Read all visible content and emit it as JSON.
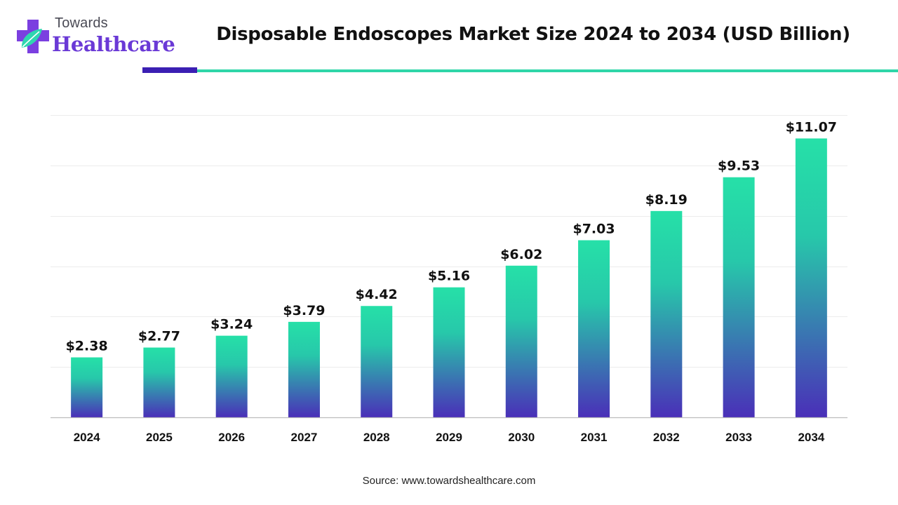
{
  "logo": {
    "line1": "Towards",
    "line2": "Healthcare"
  },
  "header": {
    "title": "Disposable Endoscopes Market Size 2024 to 2034 (USD Billion)"
  },
  "footer": {
    "source": "Source: www.towardshealthcare.com"
  },
  "colors": {
    "bar_top": "#26e0a8",
    "bar_bottom": "#4a2fb8",
    "accent_dark": "#3b1fb3",
    "accent_teal": "#2fd6a8",
    "brand_purple": "#6a39d6"
  },
  "chart_data": {
    "type": "bar",
    "title": "Disposable Endoscopes Market Size 2024 to 2034 (USD Billion)",
    "categories": [
      "2024",
      "2025",
      "2026",
      "2027",
      "2028",
      "2029",
      "2030",
      "2031",
      "2032",
      "2033",
      "2034"
    ],
    "values": [
      2.38,
      2.77,
      3.24,
      3.79,
      4.42,
      5.16,
      6.02,
      7.03,
      8.19,
      9.53,
      11.07
    ],
    "value_labels": [
      "$2.38",
      "$2.77",
      "$3.24",
      "$3.79",
      "$4.42",
      "$5.16",
      "$6.02",
      "$7.03",
      "$8.19",
      "$9.53",
      "$11.07"
    ],
    "xlabel": "",
    "ylabel": "",
    "ylim": [
      0,
      12
    ],
    "grid": true,
    "legend": "none"
  }
}
